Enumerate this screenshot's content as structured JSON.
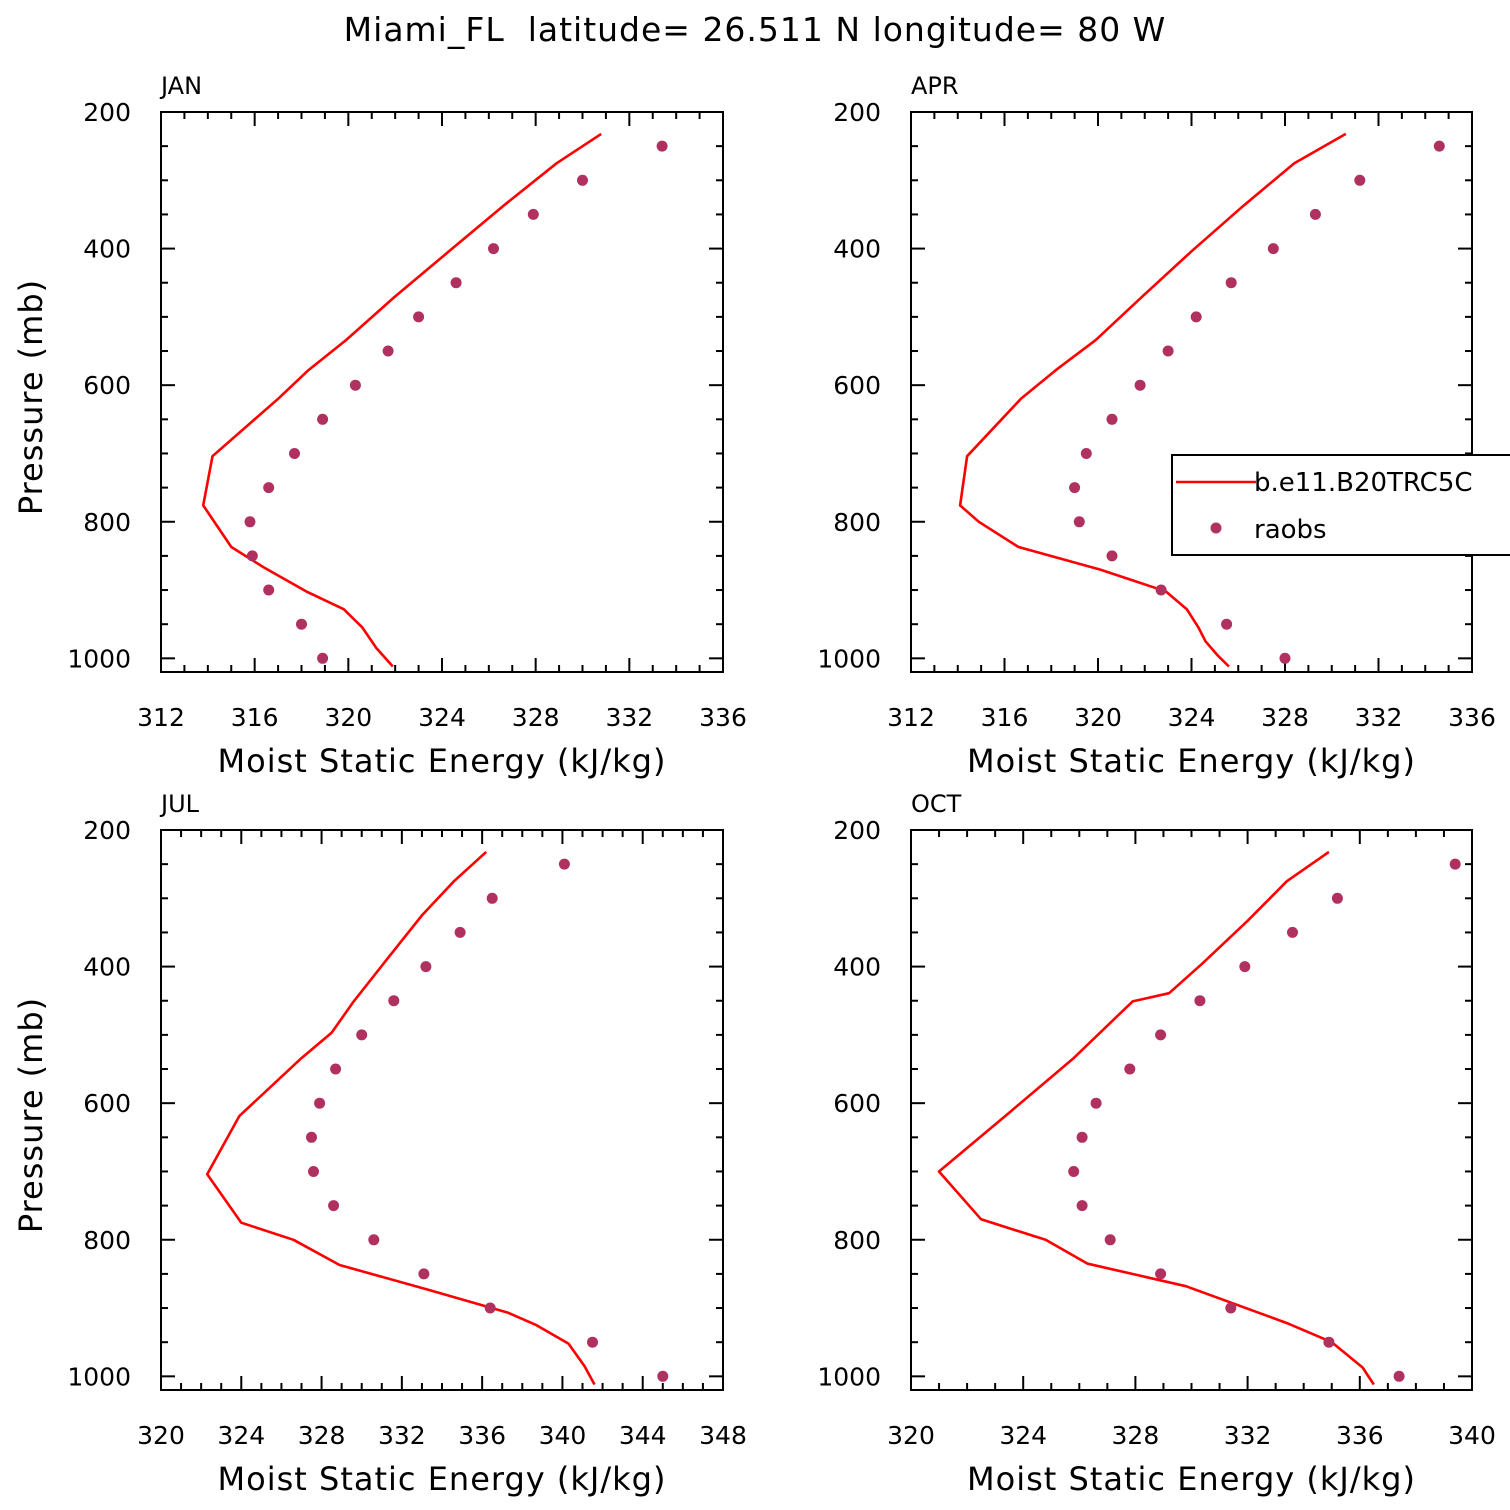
{
  "title": "Miami_FL  latitude= 26.511 N longitude= 80 W",
  "legend": {
    "model_label": "b.e11.B20TRC5C",
    "obs_label": "raobs",
    "placement": "panel APR, right"
  },
  "colors": {
    "model": "#ff0000",
    "obs": "#b03060",
    "axes": "#000000"
  },
  "chart_data": [
    {
      "type": "line",
      "panel": "JAN",
      "title": "JAN",
      "xlabel": "Moist Static Energy (kJ/kg)",
      "ylabel": "Pressure (mb)",
      "xlim": [
        312,
        336
      ],
      "ylim": [
        1020,
        200
      ],
      "xticks": [
        312,
        316,
        320,
        324,
        328,
        332,
        336
      ],
      "yticks": [
        200,
        400,
        600,
        800,
        1000
      ],
      "series": [
        {
          "name": "b.e11.B20TRC5C",
          "kind": "line",
          "x": [
            330.8,
            328.9,
            326.6,
            324.3,
            322.0,
            319.9,
            318.3,
            317.0,
            314.2,
            313.8,
            315.0,
            316.4,
            318.2,
            319.8,
            320.6,
            321.2,
            321.9
          ],
          "y": [
            232,
            275,
            338,
            404,
            470,
            534,
            578,
            620,
            704,
            776,
            837,
            867,
            902,
            928,
            955,
            985,
            1012
          ]
        },
        {
          "name": "raobs",
          "kind": "scatter",
          "x": [
            333.4,
            330.0,
            327.9,
            326.2,
            324.6,
            323.0,
            321.7,
            320.3,
            318.9,
            317.7,
            316.6,
            315.8,
            315.9,
            316.6,
            318.0,
            318.9
          ],
          "y": [
            250,
            300,
            350,
            400,
            450,
            500,
            550,
            600,
            650,
            700,
            750,
            800,
            850,
            900,
            950,
            1000
          ]
        }
      ]
    },
    {
      "type": "line",
      "panel": "APR",
      "title": "APR",
      "xlabel": "Moist Static Energy (kJ/kg)",
      "ylabel": "",
      "xlim": [
        312,
        336
      ],
      "ylim": [
        1020,
        200
      ],
      "xticks": [
        312,
        316,
        320,
        324,
        328,
        332,
        336
      ],
      "yticks": [
        200,
        400,
        600,
        800,
        1000
      ],
      "series": [
        {
          "name": "b.e11.B20TRC5C",
          "kind": "line",
          "x": [
            330.6,
            328.4,
            326.2,
            324.0,
            321.9,
            319.9,
            318.2,
            316.7,
            314.4,
            314.1,
            314.9,
            316.6,
            320.1,
            322.9,
            323.8,
            324.3,
            324.6,
            325.1,
            325.6
          ],
          "y": [
            232,
            275,
            338,
            404,
            470,
            534,
            578,
            620,
            704,
            776,
            800,
            837,
            870,
            902,
            928,
            955,
            975,
            995,
            1012
          ]
        },
        {
          "name": "raobs",
          "kind": "scatter",
          "x": [
            334.6,
            331.2,
            329.3,
            327.5,
            325.7,
            324.2,
            323.0,
            321.8,
            320.6,
            319.5,
            319.0,
            319.2,
            320.6,
            322.7,
            325.5,
            328.0
          ],
          "y": [
            250,
            300,
            350,
            400,
            450,
            500,
            550,
            600,
            650,
            700,
            750,
            800,
            850,
            900,
            950,
            1000
          ]
        }
      ]
    },
    {
      "type": "line",
      "panel": "JUL",
      "title": "JUL",
      "xlabel": "Moist Static Energy (kJ/kg)",
      "ylabel": "Pressure (mb)",
      "xlim": [
        320,
        348
      ],
      "ylim": [
        1020,
        200
      ],
      "xticks": [
        320,
        324,
        328,
        332,
        336,
        340,
        344,
        348
      ],
      "yticks": [
        200,
        400,
        600,
        800,
        1000
      ],
      "series": [
        {
          "name": "b.e11.B20TRC5C",
          "kind": "line",
          "x": [
            336.2,
            334.6,
            333.0,
            331.4,
            329.6,
            328.5,
            327.0,
            323.9,
            322.3,
            324.0,
            326.6,
            328.9,
            333.4,
            337.3,
            338.7,
            340.3,
            341.1,
            341.6
          ],
          "y": [
            232,
            275,
            325,
            384,
            451,
            497,
            534,
            619,
            704,
            775,
            800,
            837,
            874,
            907,
            925,
            952,
            985,
            1012
          ]
        },
        {
          "name": "raobs",
          "kind": "scatter",
          "x": [
            340.1,
            336.5,
            334.9,
            333.2,
            331.6,
            330.0,
            328.7,
            327.9,
            327.5,
            327.6,
            328.6,
            330.6,
            333.1,
            336.4,
            341.5,
            345.0
          ],
          "y": [
            250,
            300,
            350,
            400,
            450,
            500,
            550,
            600,
            650,
            700,
            750,
            800,
            850,
            900,
            950,
            1000
          ]
        }
      ]
    },
    {
      "type": "line",
      "panel": "OCT",
      "title": "OCT",
      "xlabel": "Moist Static Energy (kJ/kg)",
      "ylabel": "",
      "xlim": [
        320,
        340
      ],
      "ylim": [
        1020,
        200
      ],
      "xticks": [
        320,
        324,
        328,
        332,
        336,
        340
      ],
      "yticks": [
        200,
        400,
        600,
        800,
        1000
      ],
      "series": [
        {
          "name": "b.e11.B20TRC5C",
          "kind": "line",
          "x": [
            334.9,
            333.4,
            332.0,
            330.4,
            329.2,
            327.9,
            325.8,
            323.5,
            321.0,
            322.5,
            324.8,
            326.3,
            329.8,
            333.4,
            335.0,
            336.1,
            336.5
          ],
          "y": [
            232,
            275,
            333,
            395,
            439,
            451,
            534,
            614,
            700,
            770,
            800,
            835,
            868,
            922,
            950,
            987,
            1012
          ]
        },
        {
          "name": "raobs",
          "kind": "scatter",
          "x": [
            339.4,
            335.2,
            333.6,
            331.9,
            330.3,
            328.9,
            327.8,
            326.6,
            326.1,
            325.8,
            326.1,
            327.1,
            328.9,
            331.4,
            334.9,
            337.4
          ],
          "y": [
            250,
            300,
            350,
            400,
            450,
            500,
            550,
            600,
            650,
            700,
            750,
            800,
            850,
            900,
            950,
            1000
          ]
        }
      ]
    }
  ]
}
